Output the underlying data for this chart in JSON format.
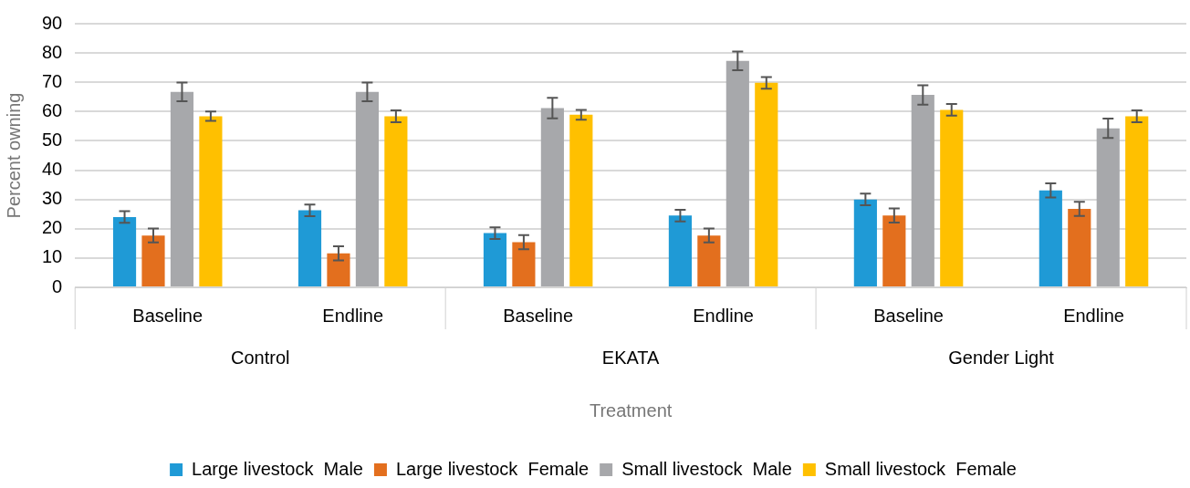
{
  "chart_data": {
    "type": "bar",
    "xlabel": "Treatment",
    "ylabel": "Percent owning",
    "categories": [
      "Baseline",
      "Endline",
      "Baseline",
      "Endline",
      "Baseline",
      "Endline"
    ],
    "annotations": [
      "Control",
      "EKATA",
      "Gender Light"
    ],
    "series": [
      {
        "name": "Large livestock  Male",
        "color": "#1f9ad6",
        "values": [
          24.0,
          26.3,
          18.5,
          24.5,
          30.0,
          33.1
        ],
        "errors": [
          2,
          2,
          2,
          2,
          2,
          2.4
        ]
      },
      {
        "name": "Large livestock  Female",
        "color": "#e36f1e",
        "values": [
          17.7,
          11.6,
          15.4,
          17.7,
          24.5,
          26.8
        ],
        "errors": [
          2.4,
          2.4,
          2.4,
          2.4,
          2.4,
          2.4
        ]
      },
      {
        "name": "Small livestock  Male",
        "color": "#a7a8ab",
        "values": [
          66.7,
          66.7,
          61.2,
          77.3,
          65.7,
          54.3
        ],
        "errors": [
          3.2,
          3.2,
          3.5,
          3.2,
          3.3,
          3.3
        ]
      },
      {
        "name": "Small livestock  Female",
        "color": "#ffc000",
        "values": [
          58.4,
          58.4,
          58.9,
          69.8,
          60.6,
          58.4
        ],
        "errors": [
          1.6,
          2,
          1.7,
          2,
          2,
          2
        ]
      }
    ],
    "ylim": [
      0,
      90
    ],
    "yticks": [
      0,
      10,
      20,
      30,
      40,
      50,
      60,
      70,
      80,
      90
    ],
    "grid": "y",
    "legend": "bottom"
  }
}
